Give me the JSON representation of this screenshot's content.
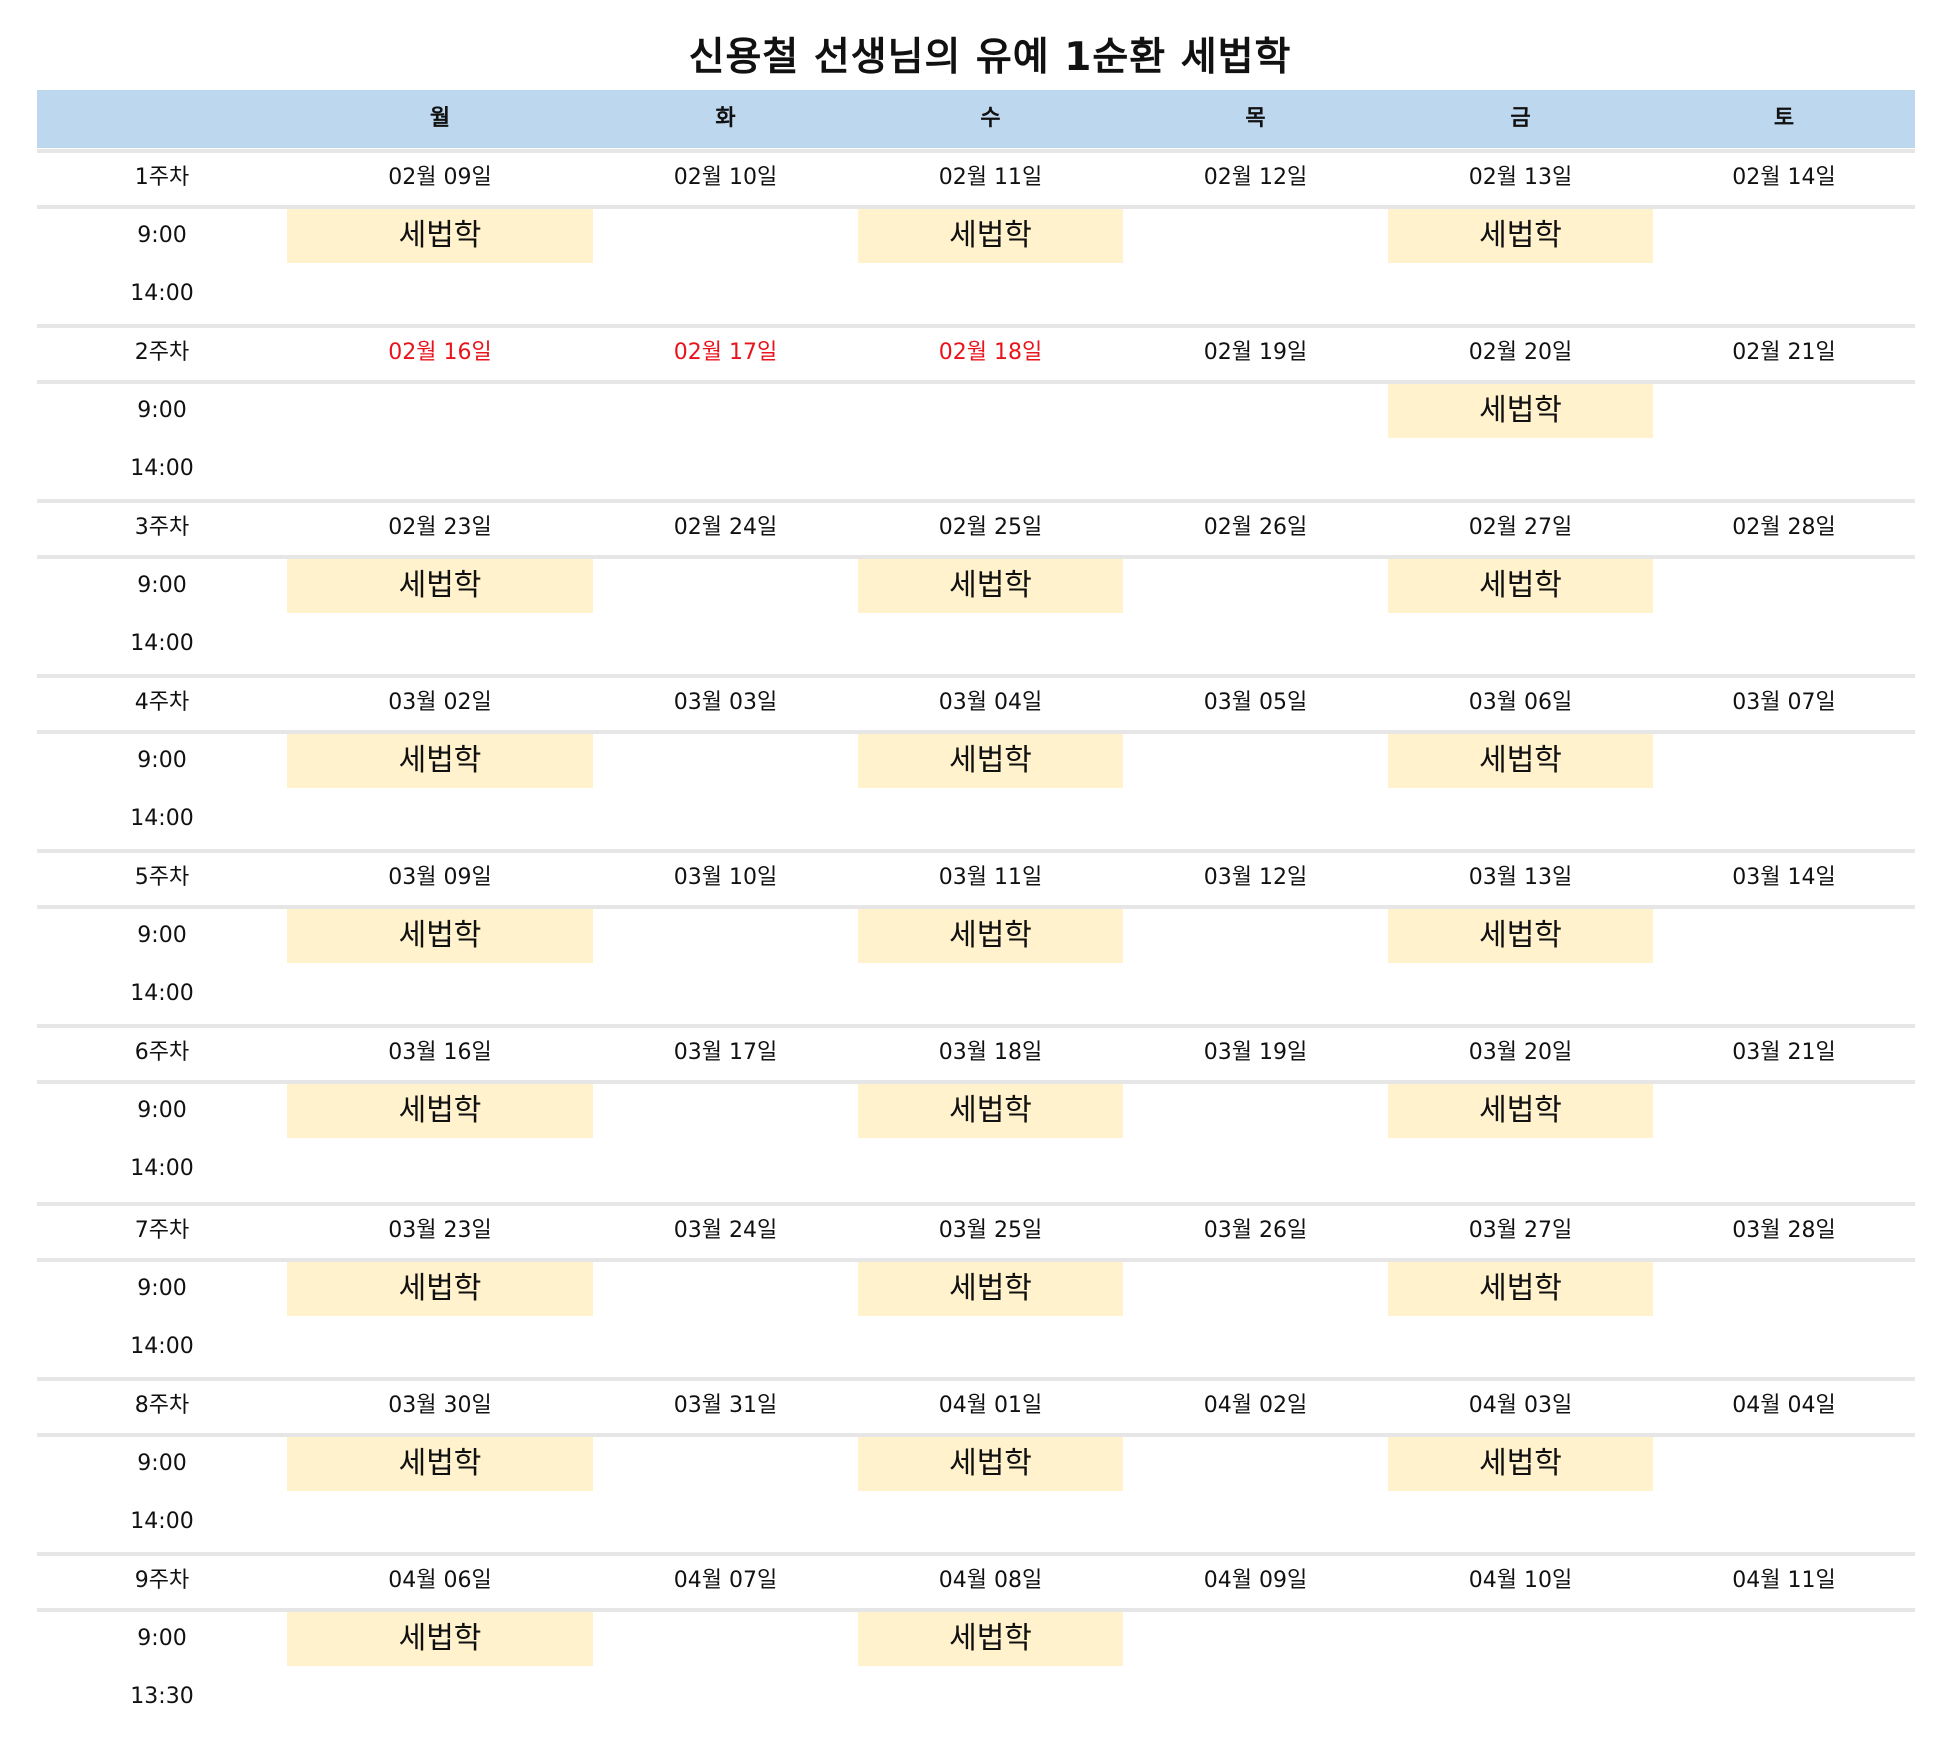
{
  "title": "신용철 선생님의 유예 1순환 세법학",
  "days": [
    "월",
    "화",
    "수",
    "목",
    "금",
    "토"
  ],
  "colors": {
    "header_bg": "#bdd7ee",
    "class_bg": "#fff2cc",
    "holiday_text": "#e8141b"
  },
  "weeks": [
    {
      "label": "1주차",
      "start": "9:00",
      "end": "14:00",
      "dates": [
        {
          "text": "02월 09일",
          "holiday": false
        },
        {
          "text": "02월 10일",
          "holiday": false
        },
        {
          "text": "02월 11일",
          "holiday": false
        },
        {
          "text": "02월 12일",
          "holiday": false
        },
        {
          "text": "02월 13일",
          "holiday": false
        },
        {
          "text": "02월 14일",
          "holiday": false
        }
      ],
      "classes": [
        "세법학",
        "",
        "세법학",
        "",
        "세법학",
        ""
      ]
    },
    {
      "label": "2주차",
      "start": "9:00",
      "end": "14:00",
      "dates": [
        {
          "text": "02월 16일",
          "holiday": true
        },
        {
          "text": "02월 17일",
          "holiday": true
        },
        {
          "text": "02월 18일",
          "holiday": true
        },
        {
          "text": "02월 19일",
          "holiday": false
        },
        {
          "text": "02월 20일",
          "holiday": false
        },
        {
          "text": "02월 21일",
          "holiday": false
        }
      ],
      "classes": [
        "",
        "",
        "",
        "",
        "세법학",
        ""
      ]
    },
    {
      "label": "3주차",
      "start": "9:00",
      "end": "14:00",
      "dates": [
        {
          "text": "02월 23일",
          "holiday": false
        },
        {
          "text": "02월 24일",
          "holiday": false
        },
        {
          "text": "02월 25일",
          "holiday": false
        },
        {
          "text": "02월 26일",
          "holiday": false
        },
        {
          "text": "02월 27일",
          "holiday": false
        },
        {
          "text": "02월 28일",
          "holiday": false
        }
      ],
      "classes": [
        "세법학",
        "",
        "세법학",
        "",
        "세법학",
        ""
      ]
    },
    {
      "label": "4주차",
      "start": "9:00",
      "end": "14:00",
      "dates": [
        {
          "text": "03월 02일",
          "holiday": false
        },
        {
          "text": "03월 03일",
          "holiday": false
        },
        {
          "text": "03월 04일",
          "holiday": false
        },
        {
          "text": "03월 05일",
          "holiday": false
        },
        {
          "text": "03월 06일",
          "holiday": false
        },
        {
          "text": "03월 07일",
          "holiday": false
        }
      ],
      "classes": [
        "세법학",
        "",
        "세법학",
        "",
        "세법학",
        ""
      ]
    },
    {
      "label": "5주차",
      "start": "9:00",
      "end": "14:00",
      "dates": [
        {
          "text": "03월 09일",
          "holiday": false
        },
        {
          "text": "03월 10일",
          "holiday": false
        },
        {
          "text": "03월 11일",
          "holiday": false
        },
        {
          "text": "03월 12일",
          "holiday": false
        },
        {
          "text": "03월 13일",
          "holiday": false
        },
        {
          "text": "03월 14일",
          "holiday": false
        }
      ],
      "classes": [
        "세법학",
        "",
        "세법학",
        "",
        "세법학",
        ""
      ]
    },
    {
      "label": "6주차",
      "start": "9:00",
      "end": "14:00",
      "dates": [
        {
          "text": "03월 16일",
          "holiday": false
        },
        {
          "text": "03월 17일",
          "holiday": false
        },
        {
          "text": "03월 18일",
          "holiday": false
        },
        {
          "text": "03월 19일",
          "holiday": false
        },
        {
          "text": "03월 20일",
          "holiday": false
        },
        {
          "text": "03월 21일",
          "holiday": false
        }
      ],
      "classes": [
        "세법학",
        "",
        "세법학",
        "",
        "세법학",
        ""
      ]
    },
    {
      "label": "7주차",
      "start": "9:00",
      "end": "14:00",
      "dates": [
        {
          "text": "03월 23일",
          "holiday": false
        },
        {
          "text": "03월 24일",
          "holiday": false
        },
        {
          "text": "03월 25일",
          "holiday": false
        },
        {
          "text": "03월 26일",
          "holiday": false
        },
        {
          "text": "03월 27일",
          "holiday": false
        },
        {
          "text": "03월 28일",
          "holiday": false
        }
      ],
      "classes": [
        "세법학",
        "",
        "세법학",
        "",
        "세법학",
        ""
      ]
    },
    {
      "label": "8주차",
      "start": "9:00",
      "end": "14:00",
      "dates": [
        {
          "text": "03월 30일",
          "holiday": false
        },
        {
          "text": "03월 31일",
          "holiday": false
        },
        {
          "text": "04월 01일",
          "holiday": false
        },
        {
          "text": "04월 02일",
          "holiday": false
        },
        {
          "text": "04월 03일",
          "holiday": false
        },
        {
          "text": "04월 04일",
          "holiday": false
        }
      ],
      "classes": [
        "세법학",
        "",
        "세법학",
        "",
        "세법학",
        ""
      ]
    },
    {
      "label": "9주차",
      "start": "9:00",
      "end": "13:30",
      "dates": [
        {
          "text": "04월 06일",
          "holiday": false
        },
        {
          "text": "04월 07일",
          "holiday": false
        },
        {
          "text": "04월 08일",
          "holiday": false
        },
        {
          "text": "04월 09일",
          "holiday": false
        },
        {
          "text": "04월 10일",
          "holiday": false
        },
        {
          "text": "04월 11일",
          "holiday": false
        }
      ],
      "classes": [
        "세법학",
        "",
        "세법학",
        "",
        "",
        ""
      ]
    }
  ]
}
